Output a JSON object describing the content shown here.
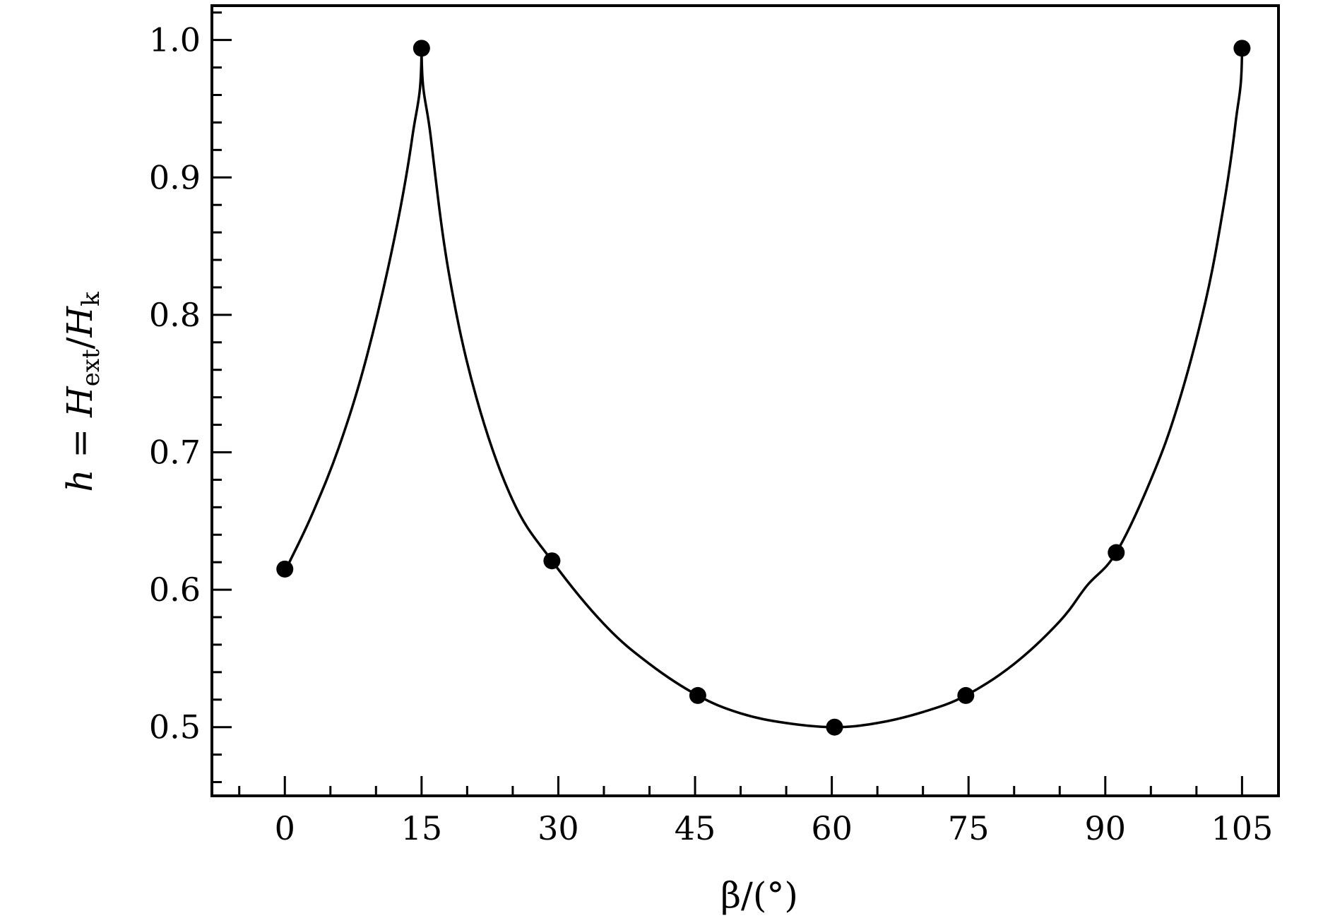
{
  "chart_data": {
    "type": "line",
    "xlabel": "β/(°)",
    "ylabel": "h = H_ext / H_k",
    "ylabel_parts": {
      "lhs": "h",
      "eq": " = ",
      "h1": "H",
      "sub1": "ext",
      "slash": "/",
      "h2": "H",
      "sub2": "k"
    },
    "xlim": [
      -8,
      109
    ],
    "ylim": [
      0.45,
      1.025
    ],
    "xticks": [
      0,
      15,
      30,
      45,
      60,
      75,
      90,
      105
    ],
    "xtick_labels": [
      "0",
      "15",
      "30",
      "45",
      "60",
      "75",
      "90",
      "105"
    ],
    "yticks": [
      0.5,
      0.6,
      0.7,
      0.8,
      0.9,
      1.0
    ],
    "ytick_labels": [
      "0.5",
      "0.6",
      "0.7",
      "0.8",
      "0.9",
      "1.0"
    ],
    "grid": false,
    "series": [
      {
        "kind": "markers",
        "marker": "filled-circle",
        "color": "#000000",
        "points": [
          {
            "x": 0,
            "y": 0.615
          },
          {
            "x": 15,
            "y": 0.994
          },
          {
            "x": 29.3,
            "y": 0.621
          },
          {
            "x": 45.3,
            "y": 0.523
          },
          {
            "x": 60.3,
            "y": 0.5
          },
          {
            "x": 74.7,
            "y": 0.523
          },
          {
            "x": 91.2,
            "y": 0.627
          },
          {
            "x": 105,
            "y": 0.994
          }
        ]
      },
      {
        "kind": "curve",
        "color": "#000000",
        "points": [
          {
            "x": 0.5,
            "y": 0.62
          },
          {
            "x": 3,
            "y": 0.655
          },
          {
            "x": 6,
            "y": 0.705
          },
          {
            "x": 9,
            "y": 0.77
          },
          {
            "x": 12,
            "y": 0.855
          },
          {
            "x": 14,
            "y": 0.93
          },
          {
            "x": 15,
            "y": 0.994
          },
          {
            "x": 16,
            "y": 0.93
          },
          {
            "x": 18,
            "y": 0.83
          },
          {
            "x": 21,
            "y": 0.74
          },
          {
            "x": 25,
            "y": 0.665
          },
          {
            "x": 29.3,
            "y": 0.621
          },
          {
            "x": 35,
            "y": 0.575
          },
          {
            "x": 40,
            "y": 0.546
          },
          {
            "x": 45.3,
            "y": 0.523
          },
          {
            "x": 50,
            "y": 0.51
          },
          {
            "x": 55,
            "y": 0.503
          },
          {
            "x": 60.3,
            "y": 0.5
          },
          {
            "x": 65,
            "y": 0.503
          },
          {
            "x": 70,
            "y": 0.511
          },
          {
            "x": 74.7,
            "y": 0.523
          },
          {
            "x": 80,
            "y": 0.546
          },
          {
            "x": 85,
            "y": 0.577
          },
          {
            "x": 88,
            "y": 0.603
          },
          {
            "x": 91.2,
            "y": 0.627
          },
          {
            "x": 95,
            "y": 0.68
          },
          {
            "x": 98,
            "y": 0.735
          },
          {
            "x": 101,
            "y": 0.81
          },
          {
            "x": 103,
            "y": 0.88
          },
          {
            "x": 104.3,
            "y": 0.94
          },
          {
            "x": 105,
            "y": 0.994
          }
        ]
      }
    ]
  }
}
